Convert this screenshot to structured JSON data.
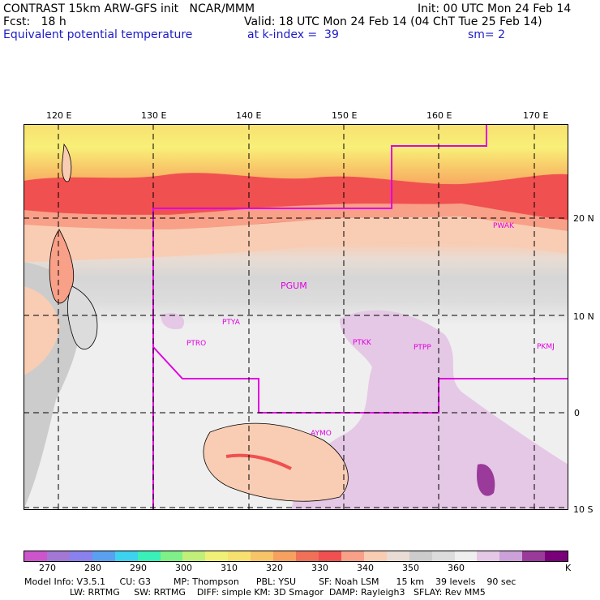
{
  "header": {
    "line1_left": "CONTRAST 15km ARW-GFS init   NCAR/MMM",
    "line1_right": "Init: 00 UTC Mon 24 Feb 14",
    "line2_left": "Fcst:   18 h",
    "line2_right": "Valid: 18 UTC Mon 24 Feb 14 (04 ChT Tue 25 Feb 14)",
    "line3_left": "Equivalent potential temperature",
    "line3_mid": "at k-index =  39",
    "line3_right": "sm= 2"
  },
  "map": {
    "lon_labels": [
      "120 E",
      "130 E",
      "140 E",
      "150 E",
      "160 E",
      "170 E"
    ],
    "lat_labels": [
      "20 N",
      "10 N",
      "0",
      "10 S"
    ],
    "stations": [
      "PWAK",
      "PGUM",
      "PTYA",
      "PTRO",
      "PTKK",
      "PTPP",
      "PKMJ",
      "AYMO"
    ]
  },
  "colorbar": {
    "colors": [
      "#cc55cc",
      "#a377d4",
      "#8a80ee",
      "#5aa0f0",
      "#3cd2f0",
      "#39f0b8",
      "#7ef087",
      "#c0f07a",
      "#f0f078",
      "#f8e070",
      "#f8c468",
      "#f8a060",
      "#f07058",
      "#f05050",
      "#f8a088",
      "#f8cdb4",
      "#e8dcd4",
      "#cccccc",
      "#dcdcdc",
      "#efefef",
      "#e5c8e5",
      "#cca0d8",
      "#9a3a9a",
      "#7a007a"
    ],
    "labels": [
      "270",
      "280",
      "290",
      "300",
      "310",
      "320",
      "330",
      "340",
      "350",
      "360",
      "K"
    ]
  },
  "footer": {
    "line1": "Model Info: V3.5.1     CU: G3        MP: Thompson      PBL: YSU        SF: Noah LSM      15 km    39 levels    90 sec",
    "line2": "                LW: RRTMG     SW: RRTMG    DIFF: simple KM: 3D Smagor  DAMP: Rayleigh3   SFLAY: Rev MM5"
  }
}
